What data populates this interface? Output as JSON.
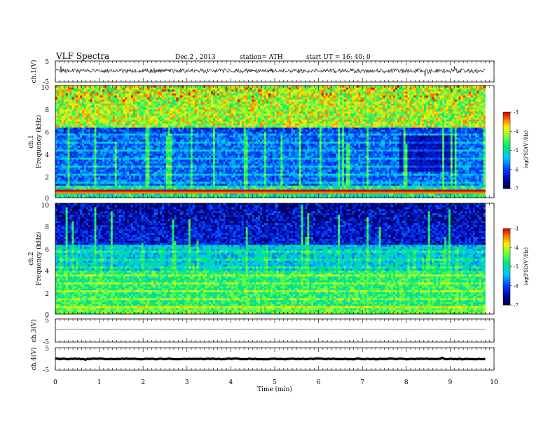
{
  "header": {
    "title": "VLF  Spectra",
    "date": "Dec.2  , 2013",
    "station": "station= ATH",
    "start": "start  UT  =    16: 40: 0"
  },
  "chart_data": [
    {
      "type": "line",
      "ylabel": "ch.1(V)",
      "yticks": [
        "5",
        "-5"
      ],
      "xlim": [
        0,
        10
      ],
      "note": "noisy waveform, roughly -1.5 to 1.5 V, fills to x=9.8"
    },
    {
      "type": "heatmap",
      "ylabel_panel": "ch.1",
      "ylabel": "Frequency  (kHz)",
      "yticks": [
        "10",
        "8",
        "6",
        "4",
        "2",
        "0"
      ],
      "ylim": [
        0,
        10
      ],
      "colorbar": {
        "label": "log(PSD(V²/Hz)",
        "ticks": [
          "-3",
          "-4",
          "-5",
          "-6",
          "-7"
        ],
        "range": [
          -7,
          -3
        ]
      }
    },
    {
      "type": "heatmap",
      "ylabel_panel": "ch.2",
      "ylabel": "Frequency  (kHz)",
      "yticks": [
        "10",
        "8",
        "6",
        "4",
        "2",
        "0"
      ],
      "ylim": [
        0,
        10
      ],
      "colorbar": {
        "label": "log(PSD(V²/Hz)",
        "ticks": [
          "-3",
          "-4",
          "-5",
          "-6",
          "-7"
        ],
        "range": [
          -7,
          -3
        ]
      }
    },
    {
      "type": "line",
      "ylabel": "ch.3(V)",
      "yticks": [
        "5",
        "-5"
      ],
      "note": "flat trace near 0 V"
    },
    {
      "type": "line",
      "ylabel": "ch.4(V)",
      "yticks": [
        "5",
        "-5"
      ],
      "note": "thick flat trace near 0 V"
    }
  ],
  "xaxis": {
    "label": "Time  (min)",
    "ticks": [
      "0",
      "1",
      "2",
      "3",
      "4",
      "5",
      "6",
      "7",
      "8",
      "9",
      "10"
    ],
    "range": [
      0,
      10
    ],
    "data_end": 9.8
  }
}
